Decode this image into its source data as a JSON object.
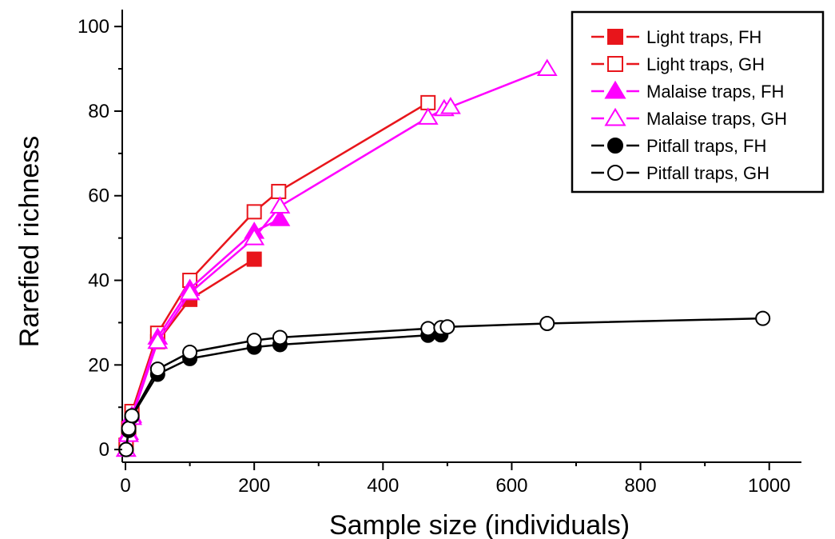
{
  "chart_data": {
    "type": "line",
    "title": "",
    "xlabel": "Sample size (individuals)",
    "ylabel": "Rarefied richness",
    "xlim": [
      -5,
      1050
    ],
    "ylim": [
      -3,
      104
    ],
    "xticks": [
      0,
      200,
      400,
      600,
      800,
      1000
    ],
    "yticks": [
      0,
      20,
      40,
      60,
      80,
      100
    ],
    "grid": false,
    "legend_position": "top-right",
    "series": [
      {
        "name": "Light traps, FH",
        "color": "#e8151b",
        "marker": "square",
        "filled": true,
        "x": [
          1,
          5,
          10,
          50,
          100,
          200
        ],
        "y": [
          1,
          4,
          8.5,
          25.5,
          35.5,
          45
        ]
      },
      {
        "name": "Light traps, GH",
        "color": "#e8151b",
        "marker": "square",
        "filled": false,
        "x": [
          1,
          5,
          10,
          50,
          100,
          200,
          238,
          470
        ],
        "y": [
          1,
          5,
          9,
          27.5,
          40,
          56.2,
          61,
          82
        ]
      },
      {
        "name": "Malaise traps, FH",
        "color": "#ff00ff",
        "marker": "triangle",
        "filled": true,
        "x": [
          1,
          5,
          10,
          50,
          100,
          200,
          240
        ],
        "y": [
          0,
          4,
          8,
          26.5,
          38,
          51.5,
          54.5
        ]
      },
      {
        "name": "Malaise traps, GH",
        "color": "#ff00ff",
        "marker": "triangle",
        "filled": false,
        "x": [
          1,
          5,
          10,
          50,
          100,
          200,
          240,
          470,
          495,
          505,
          655
        ],
        "y": [
          0,
          3.5,
          7.5,
          25.5,
          37,
          50,
          57.5,
          78.5,
          80.5,
          81,
          90
        ]
      },
      {
        "name": "Pitfall traps, FH",
        "color": "#000000",
        "marker": "circle",
        "filled": true,
        "x": [
          1,
          5,
          10,
          50,
          100,
          200,
          240,
          470,
          490
        ],
        "y": [
          0,
          4.5,
          7.8,
          17.8,
          21.5,
          24.2,
          24.8,
          27,
          27.1
        ]
      },
      {
        "name": "Pitfall traps, GH",
        "color": "#000000",
        "marker": "circle",
        "filled": false,
        "x": [
          1,
          5,
          10,
          50,
          100,
          200,
          240,
          470,
          490,
          500,
          655,
          990
        ],
        "y": [
          0,
          5,
          8,
          19,
          23,
          25.8,
          26.5,
          28.6,
          28.8,
          29,
          29.8,
          31
        ]
      }
    ]
  }
}
